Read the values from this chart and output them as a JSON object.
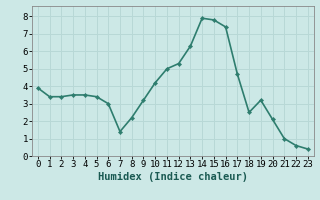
{
  "x": [
    0,
    1,
    2,
    3,
    4,
    5,
    6,
    7,
    8,
    9,
    10,
    11,
    12,
    13,
    14,
    15,
    16,
    17,
    18,
    19,
    20,
    21,
    22,
    23
  ],
  "y": [
    3.9,
    3.4,
    3.4,
    3.5,
    3.5,
    3.4,
    3.0,
    1.4,
    2.2,
    3.2,
    4.2,
    5.0,
    5.3,
    6.3,
    7.9,
    7.8,
    7.4,
    4.7,
    2.5,
    3.2,
    2.1,
    1.0,
    0.6,
    0.4
  ],
  "line_color": "#2e7d6e",
  "marker": "D",
  "marker_size": 2.2,
  "linewidth": 1.2,
  "xlabel": "Humidex (Indice chaleur)",
  "xlabel_fontsize": 7.5,
  "xlabel_bold": true,
  "xlim": [
    -0.5,
    23.5
  ],
  "ylim": [
    0,
    8.6
  ],
  "yticks": [
    0,
    1,
    2,
    3,
    4,
    5,
    6,
    7,
    8
  ],
  "background_color": "#cce8e6",
  "grid_color": "#b8d8d6",
  "tick_fontsize": 6.5
}
